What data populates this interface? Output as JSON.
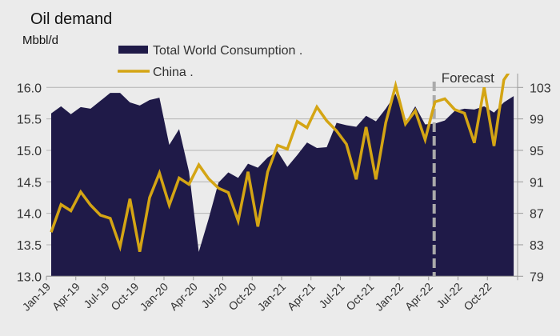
{
  "chart_data": {
    "type": "area",
    "title": "Oil demand",
    "subtitle": "Mbbl/d",
    "legend": {
      "placement": "top-center",
      "items": [
        {
          "label": "Total World Consumption .",
          "kind": "area",
          "color": "#1f1a48"
        },
        {
          "label": "China .",
          "kind": "line",
          "color": "#d4a514"
        }
      ]
    },
    "annotation": {
      "label": "Forecast",
      "at_month": "Apr-22",
      "style": "dashed vertical line",
      "color": "#aaaaaa"
    },
    "x": [
      "Jan-19",
      "Feb-19",
      "Mar-19",
      "Apr-19",
      "May-19",
      "Jun-19",
      "Jul-19",
      "Aug-19",
      "Sep-19",
      "Oct-19",
      "Nov-19",
      "Dec-19",
      "Jan-20",
      "Feb-20",
      "Mar-20",
      "Apr-20",
      "May-20",
      "Jun-20",
      "Jul-20",
      "Aug-20",
      "Sep-20",
      "Oct-20",
      "Nov-20",
      "Dec-20",
      "Jan-21",
      "Feb-21",
      "Mar-21",
      "Apr-21",
      "May-21",
      "Jun-21",
      "Jul-21",
      "Aug-21",
      "Sep-21",
      "Oct-21",
      "Nov-21",
      "Dec-21",
      "Jan-22",
      "Feb-22",
      "Mar-22",
      "Apr-22",
      "May-22",
      "Jun-22",
      "Jul-22",
      "Aug-22",
      "Sep-22",
      "Oct-22",
      "Nov-22",
      "Dec-22"
    ],
    "x_tick_labels": [
      "Jan-19",
      "Apr-19",
      "Jul-19",
      "Oct-19",
      "Jan-20",
      "Apr-20",
      "Jul-20",
      "Oct-20",
      "Jan-21",
      "Apr-21",
      "Jul-21",
      "Oct-21",
      "Jan-22",
      "Apr-22",
      "Jul-22",
      "Oct-22"
    ],
    "series": [
      {
        "name": "Total World Consumption .",
        "type": "area",
        "axis": "right",
        "color": "#1f1a48",
        "values": [
          99.7,
          100.6,
          99.6,
          100.5,
          100.3,
          101.3,
          102.3,
          102.3,
          101.1,
          100.7,
          101.4,
          101.7,
          95.7,
          97.7,
          92.3,
          82.1,
          86.3,
          90.9,
          92.2,
          91.5,
          93.3,
          92.8,
          94.1,
          94.9,
          92.9,
          94.4,
          96.0,
          95.3,
          95.4,
          98.5,
          98.2,
          98.0,
          99.4,
          98.7,
          100.3,
          102.2,
          98.5,
          100.6,
          98.3,
          98.4,
          98.8,
          100.0,
          100.3,
          100.2,
          100.6,
          99.8,
          101.1,
          101.9
        ]
      },
      {
        "name": "China .",
        "type": "line",
        "axis": "left",
        "color": "#d4a514",
        "values": [
          13.7,
          14.14,
          14.04,
          14.34,
          14.13,
          13.97,
          13.92,
          13.47,
          14.23,
          13.39,
          14.25,
          14.64,
          14.13,
          14.56,
          14.46,
          14.77,
          14.55,
          14.4,
          14.33,
          13.88,
          14.66,
          13.79,
          14.66,
          15.08,
          15.02,
          15.46,
          15.36,
          15.69,
          15.47,
          15.31,
          15.1,
          14.54,
          15.37,
          14.54,
          15.44,
          16.03,
          15.42,
          15.63,
          15.17,
          15.77,
          15.82,
          15.65,
          15.59,
          15.12,
          16.0,
          15.07,
          16.12,
          16.35
        ]
      }
    ],
    "y_left": {
      "label": "",
      "ylim": [
        13.0,
        16.0
      ],
      "ticks": [
        "13.0",
        "13.5",
        "14.0",
        "14.5",
        "15.0",
        "15.5",
        "16.0"
      ]
    },
    "y_right": {
      "label": "",
      "ylim": [
        79,
        103
      ],
      "ticks": [
        "79",
        "83",
        "87",
        "91",
        "95",
        "99",
        "103"
      ]
    },
    "grid": true
  }
}
